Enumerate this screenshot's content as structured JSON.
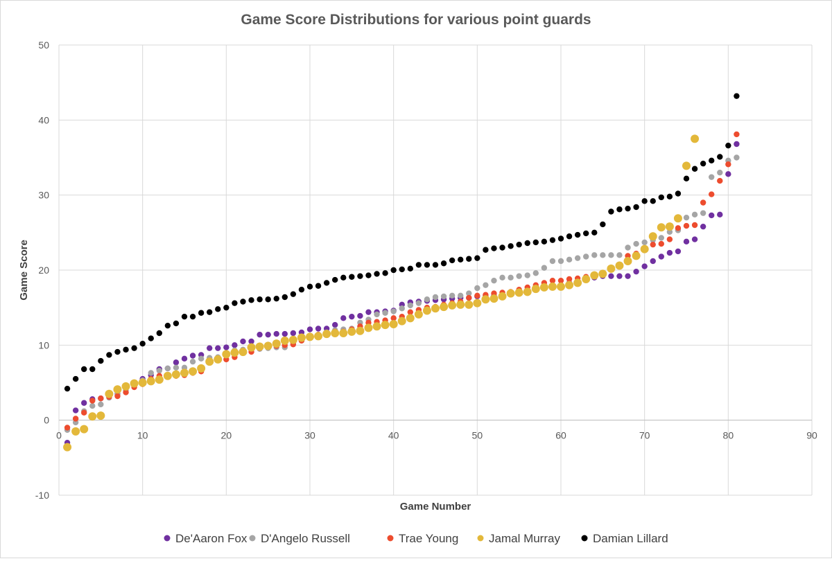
{
  "chart_data": {
    "type": "scatter",
    "title": "Game Score Distributions for various point guards",
    "xlabel": "Game Number",
    "ylabel": "Game Score",
    "xlim": [
      0,
      90
    ],
    "ylim": [
      -10,
      50
    ],
    "xticks": [
      0,
      10,
      20,
      30,
      40,
      50,
      60,
      70,
      80,
      90
    ],
    "yticks": [
      -10,
      0,
      10,
      20,
      30,
      40,
      50
    ],
    "grid": "vertical and horizontal",
    "legend": "bottom",
    "series": [
      {
        "name": "De'Aaron Fox",
        "color": "#7030a0",
        "marker": "small",
        "y": [
          -3.0,
          1.3,
          2.3,
          2.8,
          2.9,
          3.3,
          3.5,
          4.2,
          5.0,
          5.5,
          6.0,
          6.8,
          6.9,
          7.7,
          8.2,
          8.6,
          8.7,
          9.6,
          9.6,
          9.7,
          10.0,
          10.5,
          10.5,
          11.4,
          11.4,
          11.5,
          11.5,
          11.6,
          11.7,
          12.1,
          12.2,
          12.2,
          12.7,
          13.6,
          13.8,
          13.9,
          14.4,
          14.4,
          14.5,
          14.6,
          15.4,
          15.7,
          15.8,
          15.9,
          16.0,
          16.1,
          16.2,
          16.3,
          16.3,
          16.5,
          16.6,
          16.6,
          16.8,
          17.0,
          17.2,
          17.3,
          17.6,
          17.7,
          17.8,
          18.0,
          18.3,
          18.5,
          18.8,
          19.0,
          19.2,
          19.2,
          19.2,
          19.2,
          19.8,
          20.5,
          21.2,
          21.8,
          22.3,
          22.5,
          23.8,
          24.1,
          25.8,
          27.3,
          27.4,
          32.8,
          36.8
        ]
      },
      {
        "name": "D'Angelo Russell",
        "color": "#a5a5a5",
        "marker": "small",
        "y": [
          -1.3,
          -0.3,
          1.2,
          1.9,
          2.1,
          3.0,
          3.4,
          4.0,
          4.7,
          5.3,
          6.3,
          6.6,
          6.9,
          7.0,
          7.0,
          7.8,
          8.2,
          8.3,
          8.4,
          8.8,
          9.3,
          9.4,
          9.5,
          9.5,
          9.6,
          9.7,
          9.7,
          10.3,
          10.6,
          11.2,
          11.4,
          11.7,
          12.0,
          12.1,
          12.2,
          13.0,
          13.4,
          14.1,
          14.3,
          14.5,
          14.9,
          15.3,
          15.6,
          16.1,
          16.4,
          16.5,
          16.6,
          16.6,
          16.9,
          17.6,
          18.0,
          18.6,
          19.0,
          19.0,
          19.2,
          19.3,
          19.6,
          20.3,
          21.2,
          21.2,
          21.4,
          21.6,
          21.8,
          22.0,
          22.0,
          22.0,
          22.0,
          23.0,
          23.5,
          23.7,
          24.0,
          24.3,
          25.1,
          25.3,
          27.0,
          27.4,
          27.6,
          32.4,
          33.0,
          34.6,
          35.0
        ]
      },
      {
        "name": "Trae Young",
        "color": "#ed4c2e",
        "marker": "small",
        "y": [
          -1.0,
          0.2,
          1.0,
          2.6,
          2.9,
          3.1,
          3.2,
          3.7,
          4.4,
          4.8,
          5.5,
          5.9,
          5.9,
          5.9,
          6.0,
          6.3,
          6.5,
          7.9,
          8.0,
          8.1,
          8.4,
          9.0,
          9.1,
          9.6,
          9.9,
          9.9,
          10.0,
          10.1,
          10.6,
          11.2,
          11.4,
          11.6,
          11.8,
          11.8,
          12.1,
          12.5,
          13.0,
          13.1,
          13.3,
          13.6,
          13.8,
          14.4,
          14.7,
          15.0,
          15.1,
          15.4,
          15.6,
          15.8,
          16.3,
          16.6,
          16.7,
          16.9,
          17.0,
          17.1,
          17.4,
          17.7,
          18.0,
          18.3,
          18.6,
          18.6,
          18.8,
          18.9,
          19.1,
          19.4,
          19.5,
          20.1,
          20.6,
          21.9,
          22.2,
          22.9,
          23.4,
          23.5,
          24.1,
          25.6,
          25.9,
          26.0,
          29.0,
          30.1,
          31.9,
          34.1,
          38.1
        ]
      },
      {
        "name": "Jamal Murray",
        "color": "#e3b83a",
        "marker": "large",
        "y": [
          -3.6,
          -1.5,
          -1.2,
          0.5,
          0.6,
          3.5,
          4.1,
          4.5,
          4.9,
          5.0,
          5.2,
          5.4,
          5.9,
          6.1,
          6.3,
          6.5,
          6.9,
          7.8,
          8.1,
          8.8,
          9.0,
          9.1,
          9.7,
          9.8,
          9.9,
          10.2,
          10.6,
          10.7,
          11.0,
          11.1,
          11.2,
          11.5,
          11.6,
          11.6,
          11.8,
          11.9,
          12.3,
          12.5,
          12.7,
          12.8,
          13.2,
          13.6,
          14.1,
          14.6,
          14.9,
          15.1,
          15.3,
          15.4,
          15.4,
          15.6,
          16.1,
          16.2,
          16.5,
          16.9,
          17.0,
          17.1,
          17.5,
          17.7,
          17.8,
          17.8,
          18.0,
          18.3,
          18.8,
          19.3,
          19.5,
          20.2,
          20.6,
          21.2,
          21.9,
          22.8,
          24.5,
          25.7,
          25.8,
          26.9,
          33.9,
          37.5
        ]
      },
      {
        "name": "Damian Lillard",
        "color": "#000000",
        "marker": "small",
        "y": [
          4.2,
          5.5,
          6.8,
          6.8,
          7.9,
          8.7,
          9.1,
          9.4,
          9.6,
          10.2,
          10.9,
          11.6,
          12.6,
          12.9,
          13.8,
          13.8,
          14.3,
          14.4,
          14.8,
          15.0,
          15.6,
          15.8,
          16.0,
          16.1,
          16.1,
          16.2,
          16.4,
          16.8,
          17.4,
          17.8,
          17.9,
          18.3,
          18.7,
          19.0,
          19.1,
          19.2,
          19.3,
          19.5,
          19.6,
          20.0,
          20.1,
          20.2,
          20.7,
          20.7,
          20.7,
          20.9,
          21.3,
          21.4,
          21.5,
          21.6,
          22.7,
          22.9,
          23.0,
          23.2,
          23.4,
          23.6,
          23.7,
          23.8,
          24.0,
          24.2,
          24.5,
          24.7,
          24.9,
          25.0,
          26.1,
          27.8,
          28.1,
          28.2,
          28.4,
          29.2,
          29.2,
          29.7,
          29.8,
          30.2,
          32.2,
          33.5,
          34.2,
          34.6,
          35.1,
          36.6,
          43.2
        ]
      }
    ]
  }
}
